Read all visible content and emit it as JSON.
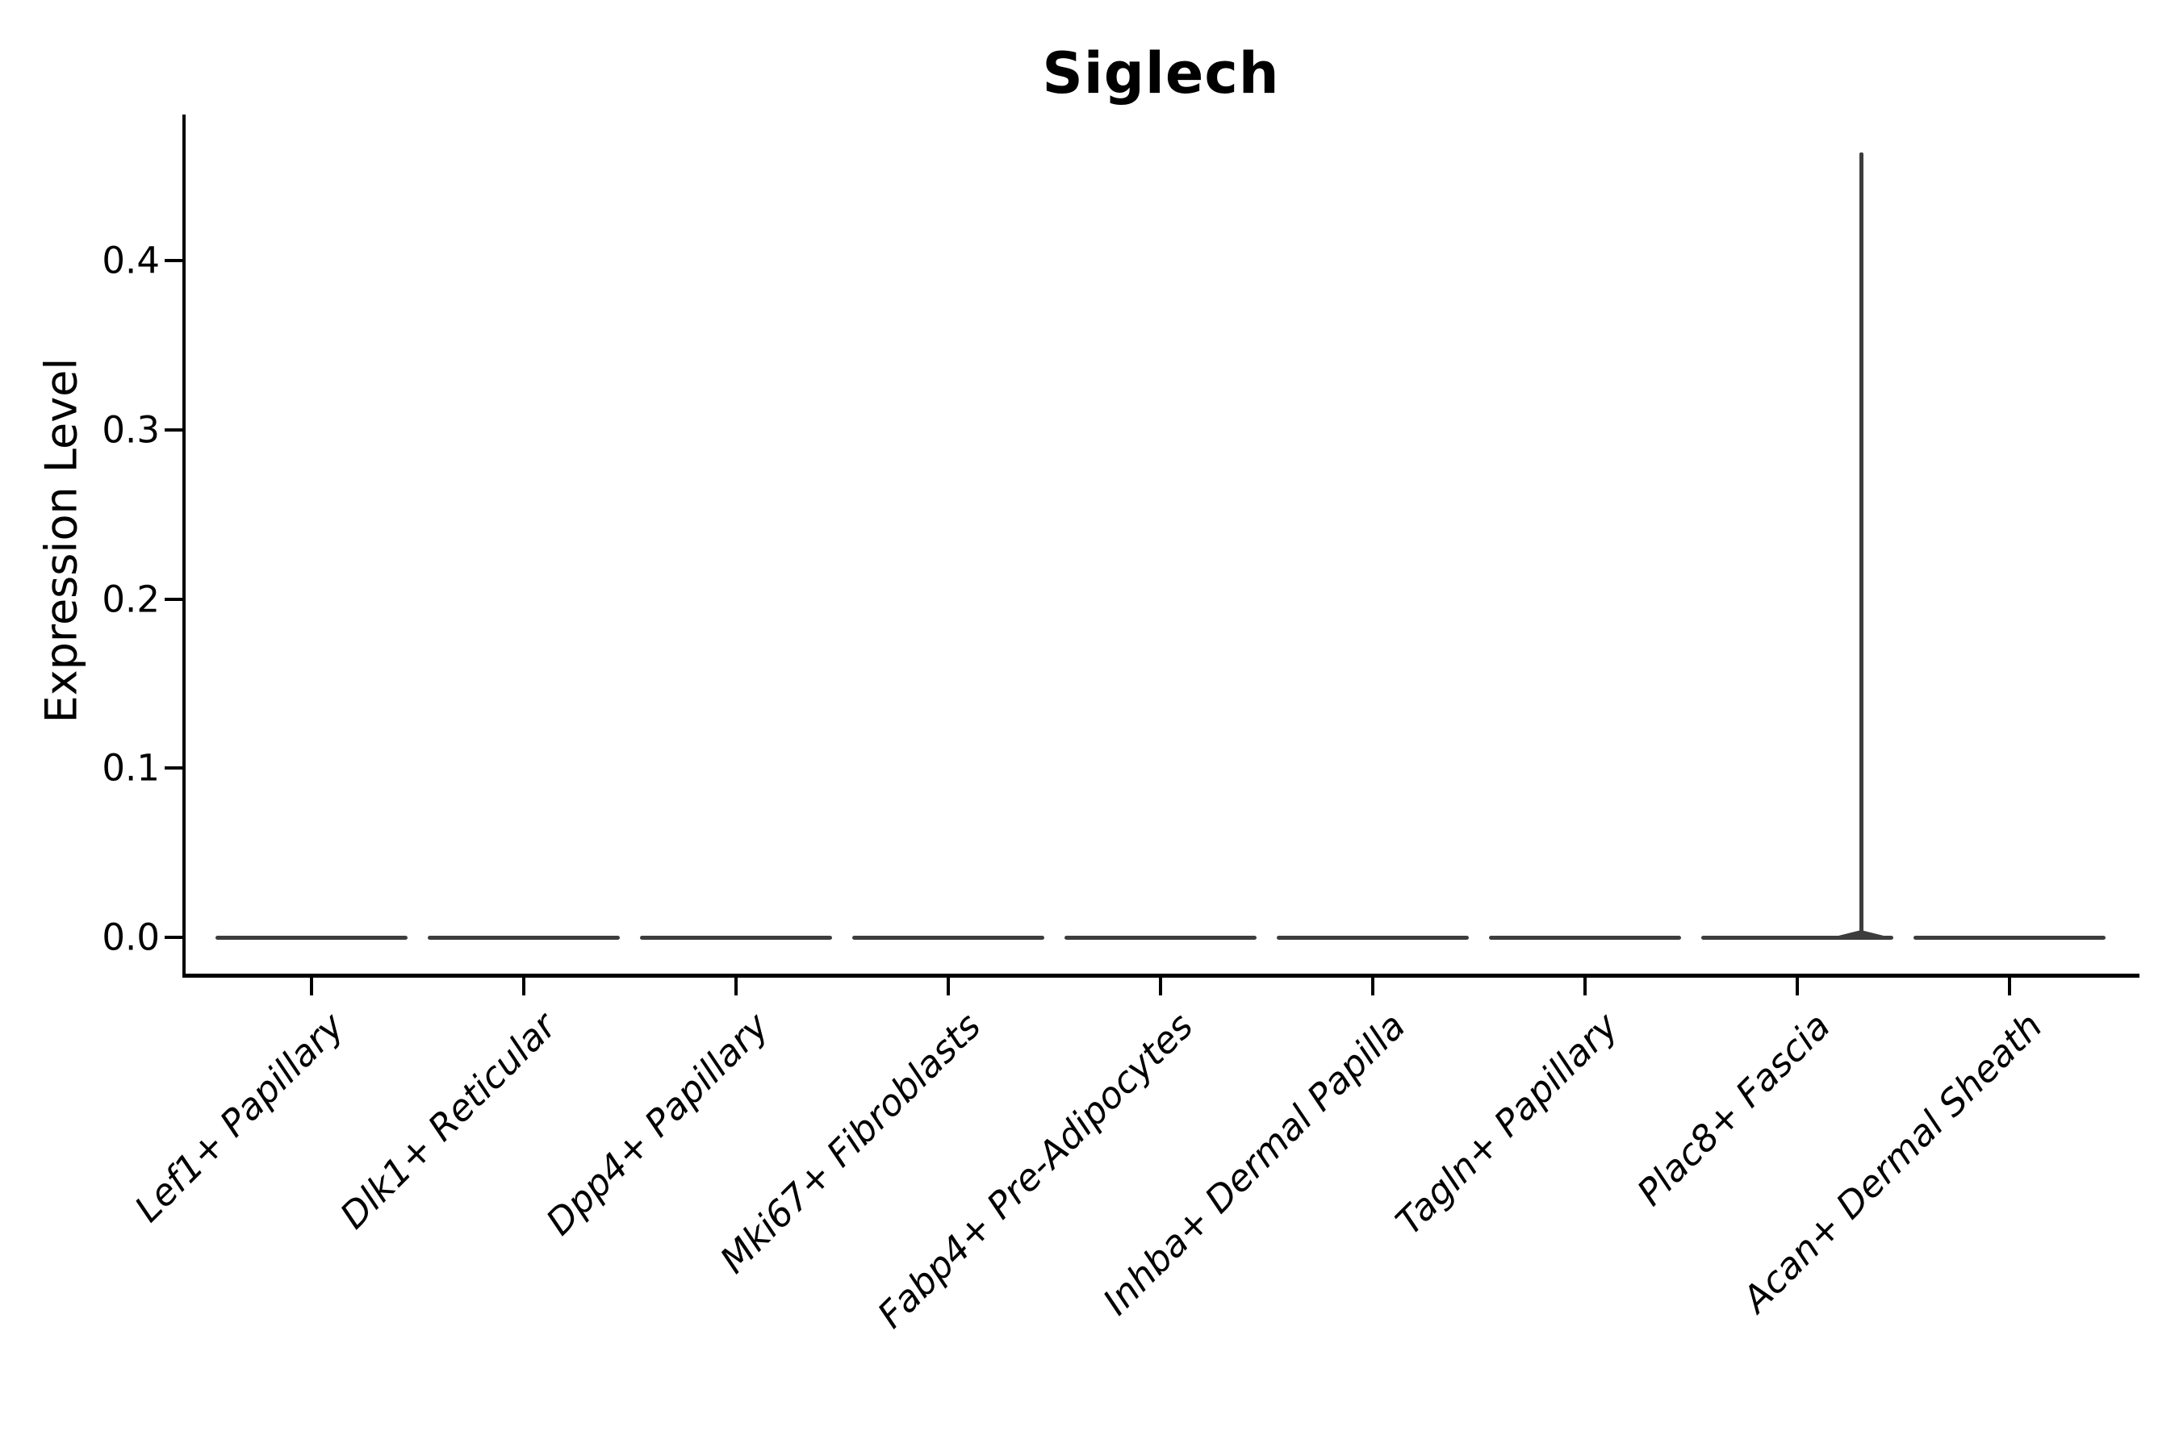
{
  "page": {
    "background": "#ffffff"
  },
  "chart_data": {
    "type": "violin",
    "title": "Siglech",
    "xlabel": "",
    "ylabel": "Expression Level",
    "categories": [
      "Lef1+ Papillary",
      "Dlk1+ Reticular",
      "Dpp4+ Papillary",
      "Mki67+ Fibroblasts",
      "Fabp4+ Pre-Adipocytes",
      "Inhba+ Dermal Papilla",
      "Tagln+ Papillary",
      "Plac8+ Fascia",
      "Acan+ Dermal Sheath"
    ],
    "series": [
      {
        "name": "Lef1+ Papillary",
        "min": 0.0,
        "max": 0.0,
        "median": 0.0
      },
      {
        "name": "Dlk1+ Reticular",
        "min": 0.0,
        "max": 0.0,
        "median": 0.0
      },
      {
        "name": "Dpp4+ Papillary",
        "min": 0.0,
        "max": 0.0,
        "median": 0.0
      },
      {
        "name": "Mki67+ Fibroblasts",
        "min": 0.0,
        "max": 0.0,
        "median": 0.0
      },
      {
        "name": "Fabp4+ Pre-Adipocytes",
        "min": 0.0,
        "max": 0.0,
        "median": 0.0
      },
      {
        "name": "Inhba+ Dermal Papilla",
        "min": 0.0,
        "max": 0.0,
        "median": 0.0
      },
      {
        "name": "Tagln+ Papillary",
        "min": 0.0,
        "max": 0.0,
        "median": 0.0
      },
      {
        "name": "Plac8+ Fascia",
        "min": 0.0,
        "max": 0.464,
        "median": 0.0
      },
      {
        "name": "Acan+ Dermal Sheath",
        "min": 0.0,
        "max": 0.0,
        "median": 0.0
      }
    ],
    "ytick_labels": [
      "0.0",
      "0.1",
      "0.2",
      "0.3",
      "0.4"
    ],
    "ytick_values": [
      0.0,
      0.1,
      0.2,
      0.3,
      0.4
    ],
    "ylim": [
      -0.022,
      0.486
    ],
    "grid": false,
    "legend": false,
    "x_label_rotation_deg": 45,
    "x_label_style": "italic",
    "violin_shape_note": "all violins collapsed flat at 0; Plac8+ Fascia has a thin spike up to 0.464"
  },
  "colors": {
    "violin": "#3d3d3d",
    "axis": "#000000",
    "text": "#000000",
    "background": "#ffffff"
  }
}
